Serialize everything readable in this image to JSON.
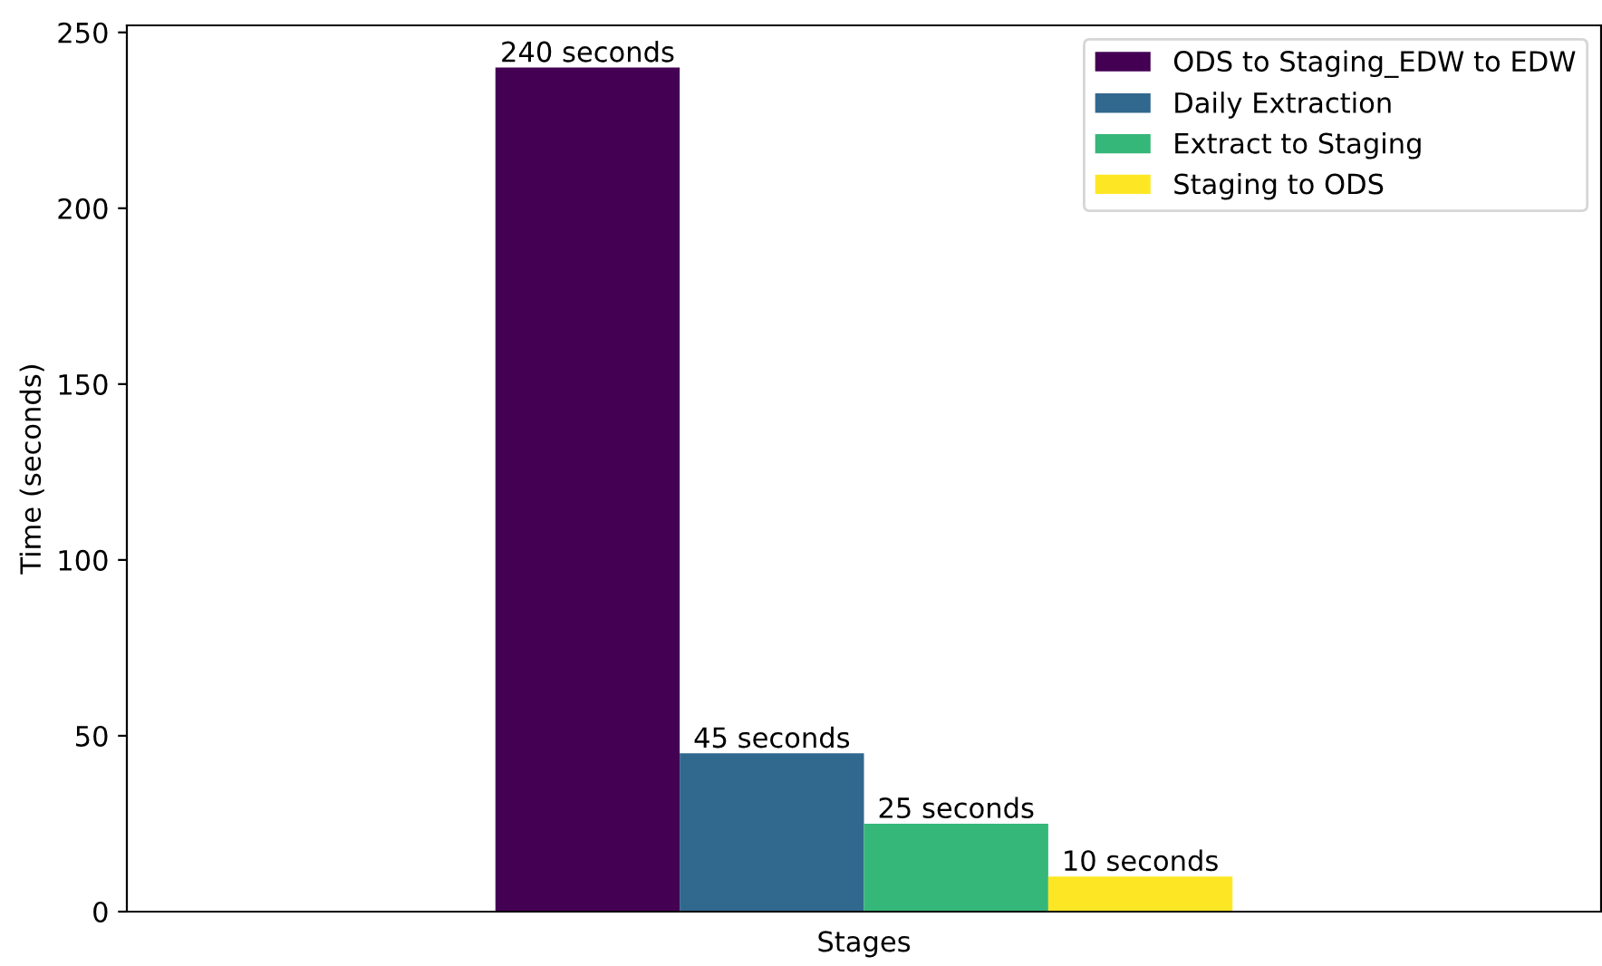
{
  "chart_data": {
    "type": "bar",
    "xlabel": "Stages",
    "ylabel": "Time (seconds)",
    "categories": [
      null
    ],
    "series": [
      {
        "name": "ODS to Staging_EDW to EDW",
        "color": "#440154",
        "values": [
          240
        ],
        "value_labels": [
          "240 seconds"
        ]
      },
      {
        "name": "Daily Extraction",
        "color": "#31688e",
        "values": [
          45
        ],
        "value_labels": [
          "45 seconds"
        ]
      },
      {
        "name": "Extract to Staging",
        "color": "#35b779",
        "values": [
          25
        ],
        "value_labels": [
          "25 seconds"
        ]
      },
      {
        "name": "Staging to ODS",
        "color": "#fde725",
        "values": [
          10
        ],
        "value_labels": [
          "10 seconds"
        ]
      }
    ],
    "ylim": [
      0,
      252
    ],
    "yticks": [
      0,
      50,
      100,
      150,
      200,
      250
    ],
    "grid": false,
    "legend": "top right"
  }
}
